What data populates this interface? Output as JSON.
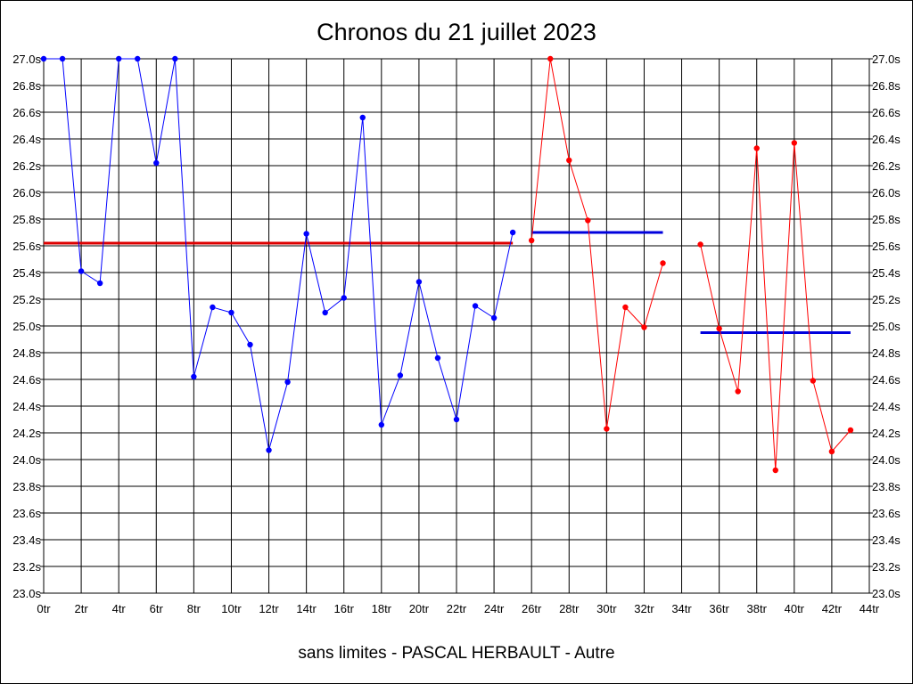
{
  "chart_data": {
    "type": "line",
    "title": "Chronos du 21 juillet 2023",
    "subtitle": "sans limites - PASCAL HERBAULT - Autre",
    "xlim": [
      0,
      44
    ],
    "ylim": [
      23.0,
      27.0
    ],
    "grid": true,
    "x_tick_labels": [
      "0tr",
      "2tr",
      "4tr",
      "6tr",
      "8tr",
      "10tr",
      "12tr",
      "14tr",
      "16tr",
      "18tr",
      "20tr",
      "22tr",
      "24tr",
      "26tr",
      "28tr",
      "30tr",
      "32tr",
      "34tr",
      "36tr",
      "38tr",
      "40tr",
      "42tr",
      "44tr"
    ],
    "y_tick_labels": [
      "23.0s",
      "23.2s",
      "23.4s",
      "23.6s",
      "23.8s",
      "24.0s",
      "24.2s",
      "24.4s",
      "24.6s",
      "24.8s",
      "25.0s",
      "25.2s",
      "25.4s",
      "25.6s",
      "25.8s",
      "26.0s",
      "26.2s",
      "26.4s",
      "26.6s",
      "26.8s",
      "27.0s"
    ],
    "series": [
      {
        "color": "#0000ff",
        "x": [
          0,
          1,
          2,
          3,
          4,
          5,
          6,
          7,
          8,
          9,
          10,
          11,
          12,
          13,
          14,
          15,
          16,
          17,
          18,
          19,
          20,
          21,
          22,
          23,
          24,
          25
        ],
        "y": [
          27.0,
          27.0,
          25.41,
          25.32,
          27.0,
          27.0,
          26.22,
          27.0,
          24.62,
          25.14,
          25.1,
          24.86,
          24.07,
          24.58,
          25.69,
          25.1,
          25.21,
          26.56,
          24.26,
          24.63,
          25.33,
          24.76,
          24.3,
          25.15,
          25.06,
          25.7
        ]
      },
      {
        "color": "#ff0000",
        "x": [
          26,
          27,
          28,
          29,
          30,
          31,
          32,
          33
        ],
        "y": [
          25.64,
          27.0,
          26.24,
          25.79,
          24.23,
          25.14,
          24.99,
          25.47
        ]
      },
      {
        "color": "#ff0000",
        "x": [
          35,
          36,
          37,
          38,
          39,
          40,
          41,
          42,
          43
        ],
        "y": [
          25.61,
          24.98,
          24.51,
          26.33,
          23.92,
          26.37,
          24.59,
          24.06,
          24.22
        ]
      }
    ],
    "average_lines": [
      {
        "color": "#dd0000",
        "x_start": 0,
        "x_end": 25,
        "y": 25.62
      },
      {
        "color": "#0000dd",
        "x_start": 26,
        "x_end": 33,
        "y": 25.7
      },
      {
        "color": "#0000dd",
        "x_start": 35,
        "x_end": 43,
        "y": 24.95
      }
    ]
  }
}
